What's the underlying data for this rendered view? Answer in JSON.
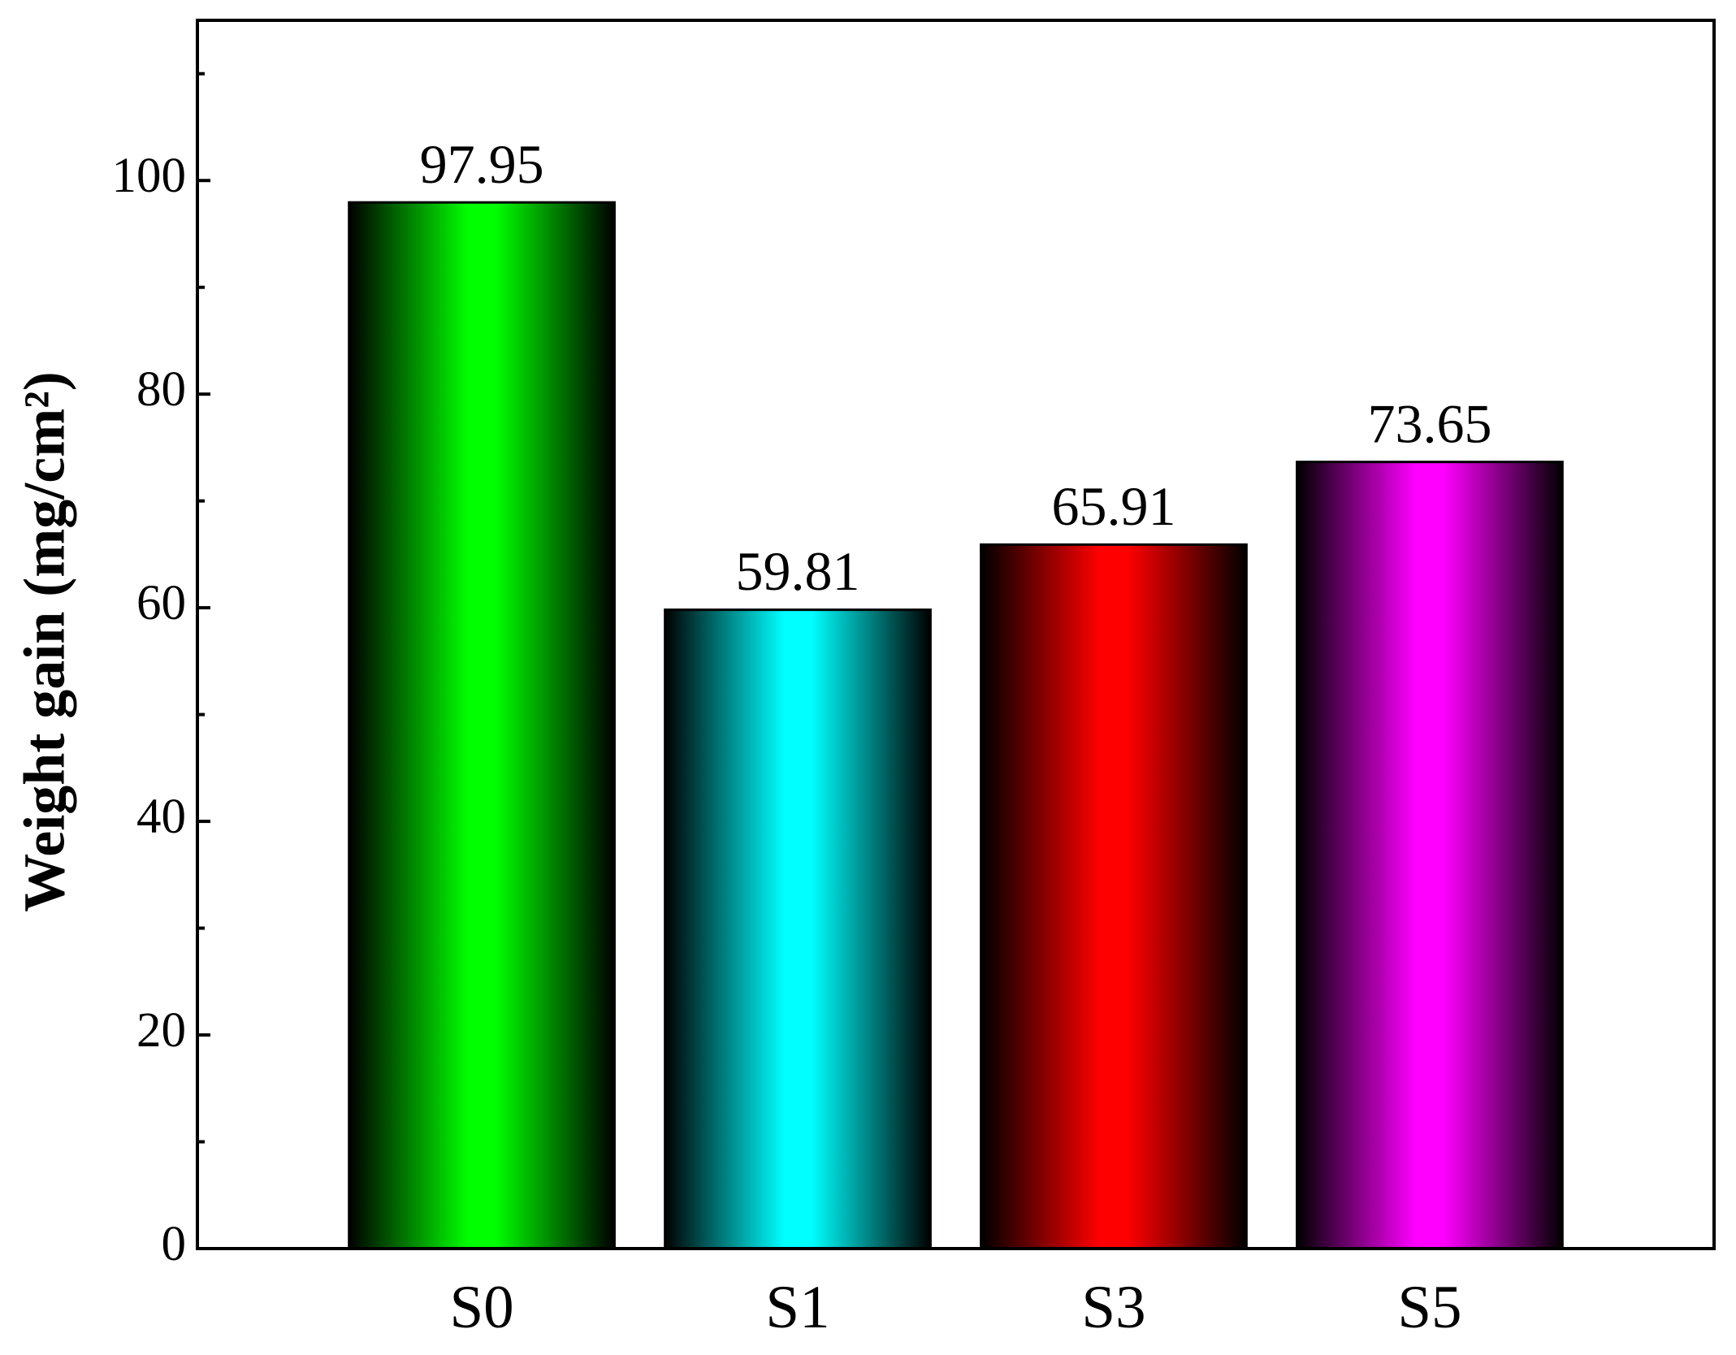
{
  "chart_data": {
    "type": "bar",
    "y_label": "Weight gain (mg/cm²)",
    "categories": [
      "S0",
      "S1",
      "S3",
      "S5"
    ],
    "values": [
      97.95,
      59.81,
      65.91,
      73.65
    ],
    "colors": [
      "#00ff00",
      "#00ffff",
      "#ff0000",
      "#ff00ff"
    ],
    "ylim": [
      0,
      115
    ],
    "yticks": [
      0,
      20,
      40,
      60,
      80,
      100
    ],
    "minor_yticks": [
      10,
      30,
      50,
      70,
      90,
      110
    ]
  }
}
